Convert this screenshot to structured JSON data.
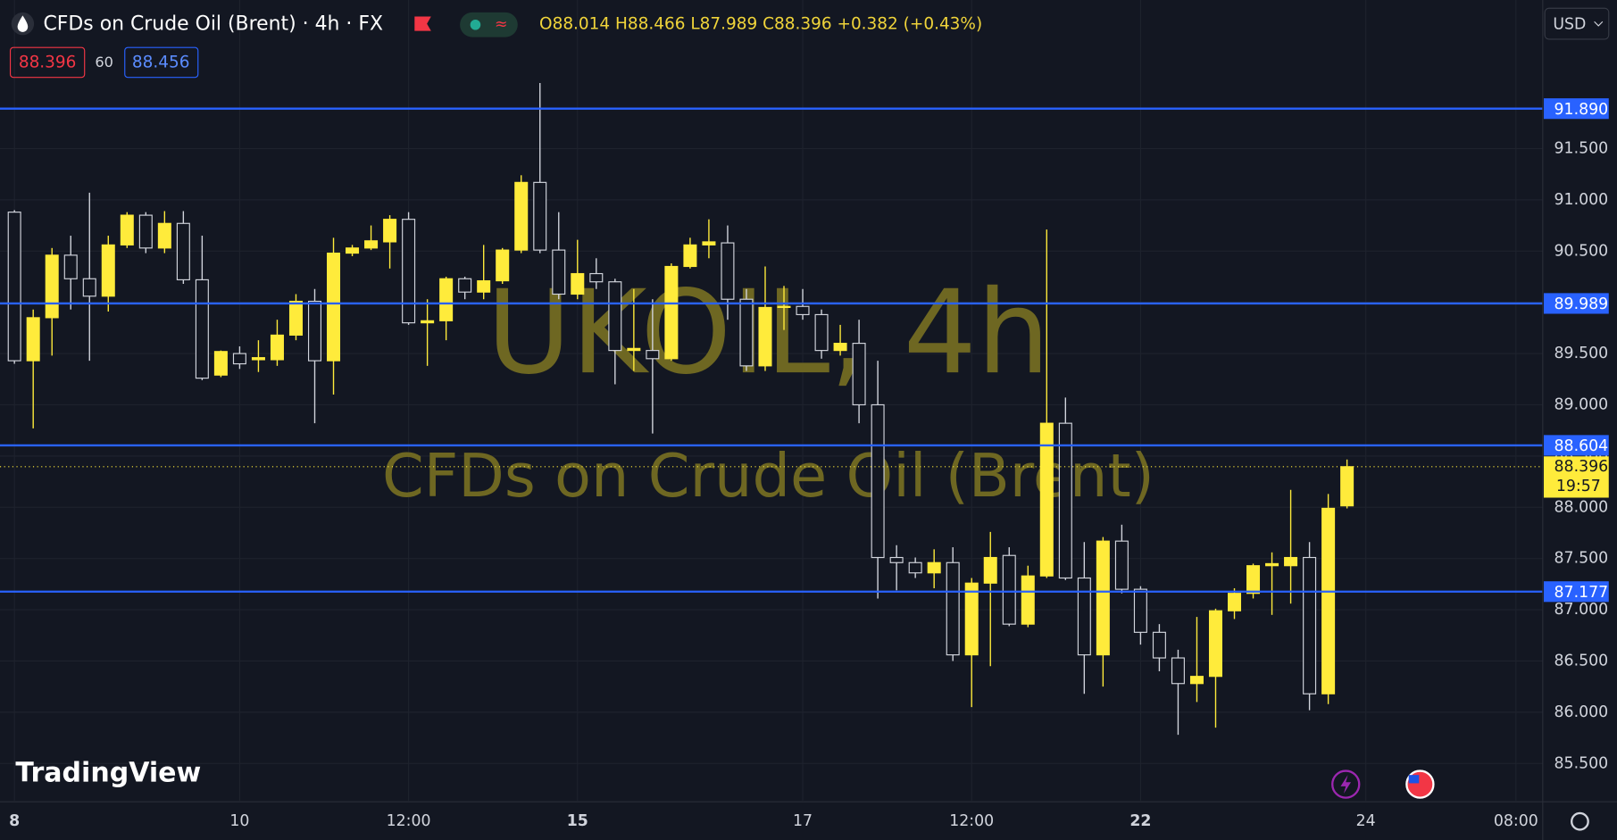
{
  "header": {
    "symbol": "CFDs on Crude Oil (Brent) · 4h · FX",
    "ohlc": "O88.014 H88.466 L87.989 C88.396 +0.382 (+0.43%)",
    "sell": "88.396",
    "spread": "60",
    "buy": "88.456",
    "currency": "USD"
  },
  "watermark": {
    "symbol": "UKOIL, 4h",
    "name": "CFDs on Crude Oil (Brent)"
  },
  "logo": "TradingView",
  "chart_data": {
    "type": "candlestick",
    "categories": [
      "8",
      null,
      null,
      null,
      null,
      null,
      null,
      null,
      null,
      null,
      null,
      null,
      "10",
      null,
      null,
      null,
      null,
      null,
      null,
      null,
      null,
      "12:00",
      null,
      null,
      null,
      null,
      null,
      null,
      null,
      null,
      "15",
      null,
      null,
      null,
      null,
      null,
      null,
      null,
      null,
      null,
      null,
      null,
      "17",
      null,
      null,
      null,
      null,
      null,
      null,
      null,
      null,
      "12:00",
      null,
      null,
      null,
      null,
      null,
      null,
      null,
      null,
      "22",
      null,
      null,
      null,
      null,
      null,
      null,
      null,
      null,
      null,
      null,
      null,
      "24",
      null,
      null,
      null,
      null,
      null,
      null,
      null,
      "08:00"
    ],
    "open": [
      90.88,
      89.43,
      89.85,
      90.46,
      90.23,
      90.06,
      90.56,
      90.85,
      90.53,
      90.77,
      90.22,
      89.29,
      89.5,
      89.44,
      89.44,
      89.68,
      90.01,
      89.43,
      90.48,
      90.53,
      90.59,
      90.81,
      89.8,
      89.82,
      90.23,
      90.1,
      90.21,
      90.51,
      91.17,
      90.51,
      90.08,
      90.28,
      90.2,
      89.53,
      89.53,
      89.45,
      90.35,
      90.56,
      90.58,
      90.03,
      89.38,
      89.95,
      89.96,
      89.88,
      89.53,
      89.6,
      89.0,
      87.51,
      87.46,
      87.36,
      87.46,
      86.56,
      87.26,
      87.53,
      86.86,
      87.33,
      88.82,
      87.31,
      86.56,
      87.67,
      87.2,
      86.78,
      86.53,
      86.28,
      86.35,
      86.99,
      87.16,
      87.43,
      87.43,
      87.51,
      86.18,
      88.014,
      null,
      null,
      null,
      null,
      null,
      null,
      null,
      null,
      null
    ],
    "high": [
      90.9,
      89.93,
      90.53,
      90.65,
      91.07,
      90.65,
      90.88,
      90.88,
      90.89,
      90.89,
      90.65,
      89.53,
      89.57,
      89.63,
      89.83,
      90.08,
      90.13,
      90.63,
      90.56,
      90.75,
      90.85,
      90.88,
      90.03,
      90.25,
      90.25,
      90.56,
      90.53,
      91.24,
      92.14,
      90.88,
      90.61,
      90.43,
      90.23,
      90.13,
      90.03,
      90.38,
      90.63,
      90.81,
      90.75,
      90.13,
      90.35,
      90.16,
      90.13,
      89.93,
      89.78,
      89.83,
      89.43,
      87.63,
      87.51,
      87.59,
      87.61,
      87.31,
      87.76,
      87.61,
      87.43,
      90.71,
      89.07,
      87.66,
      87.71,
      87.83,
      87.23,
      86.86,
      86.61,
      86.93,
      87.01,
      87.21,
      87.45,
      87.56,
      88.17,
      87.66,
      88.13,
      88.466,
      null,
      null,
      null,
      null,
      null,
      null,
      null,
      null,
      null
    ],
    "low": [
      89.4,
      88.77,
      89.48,
      89.93,
      89.43,
      89.91,
      90.53,
      90.48,
      90.48,
      90.18,
      89.24,
      89.27,
      89.35,
      89.32,
      89.38,
      89.63,
      88.82,
      89.1,
      90.45,
      90.51,
      90.33,
      89.78,
      89.38,
      89.63,
      90.03,
      90.03,
      90.18,
      90.48,
      90.48,
      90.03,
      90.03,
      90.13,
      89.2,
      89.33,
      88.72,
      89.43,
      90.33,
      90.43,
      89.83,
      89.33,
      89.33,
      89.73,
      89.83,
      89.45,
      89.48,
      88.82,
      87.11,
      87.19,
      87.31,
      87.21,
      86.5,
      86.05,
      86.45,
      86.84,
      86.83,
      87.31,
      87.29,
      86.18,
      86.25,
      87.16,
      86.66,
      86.4,
      85.78,
      86.1,
      85.85,
      86.91,
      87.11,
      86.95,
      87.06,
      86.02,
      86.08,
      87.989,
      null,
      null,
      null,
      null,
      null,
      null,
      null,
      null,
      null
    ],
    "close": [
      89.43,
      89.85,
      90.46,
      90.23,
      90.06,
      90.56,
      90.85,
      90.53,
      90.77,
      90.22,
      89.26,
      89.52,
      89.4,
      89.46,
      89.68,
      90.01,
      89.43,
      90.48,
      90.53,
      90.6,
      90.81,
      89.8,
      89.82,
      90.23,
      90.1,
      90.21,
      90.51,
      91.17,
      90.51,
      90.08,
      90.28,
      90.2,
      89.53,
      89.55,
      89.45,
      90.35,
      90.56,
      90.59,
      90.03,
      89.38,
      89.95,
      89.96,
      89.88,
      89.53,
      89.6,
      89.0,
      87.51,
      87.46,
      87.36,
      87.46,
      86.56,
      87.26,
      87.51,
      86.86,
      87.33,
      88.82,
      87.31,
      86.56,
      87.67,
      87.2,
      86.78,
      86.53,
      86.28,
      86.35,
      86.99,
      87.16,
      87.43,
      87.45,
      87.51,
      86.18,
      87.99,
      88.396,
      null,
      null,
      null,
      null,
      null,
      null,
      null,
      null,
      null
    ],
    "up_color": "#ffeb3b",
    "down_color": "#131722",
    "down_border": "#d1d4dc",
    "ylim": [
      85.136,
      92.95
    ],
    "yticks": [
      {
        "value": 85.5,
        "label": "85.500"
      },
      {
        "value": 86,
        "label": "86.000"
      },
      {
        "value": 86.5,
        "label": "86.500"
      },
      {
        "value": 87,
        "label": "87.000"
      },
      {
        "value": 87.5,
        "label": "87.500"
      },
      {
        "value": 88,
        "label": "88.000"
      },
      {
        "value": 88.5,
        "label": "88.500"
      },
      {
        "value": 89,
        "label": "89.000"
      },
      {
        "value": 89.5,
        "label": "89.500"
      },
      {
        "value": 90,
        "label": "90.000"
      },
      {
        "value": 90.5,
        "label": "90.500"
      },
      {
        "value": 91,
        "label": "91.000"
      },
      {
        "value": 91.5,
        "label": "91.500"
      }
    ],
    "grid": true,
    "levels": [
      {
        "value": 91.89,
        "label": "91.890"
      },
      {
        "value": 89.989,
        "label": "89.989"
      },
      {
        "value": 88.604,
        "label": "88.604"
      },
      {
        "value": 87.177,
        "label": "87.177"
      }
    ],
    "level_color": "#2962ff",
    "last_price": {
      "value": 88.396,
      "label": "88.396"
    },
    "countdown": "19:57"
  }
}
